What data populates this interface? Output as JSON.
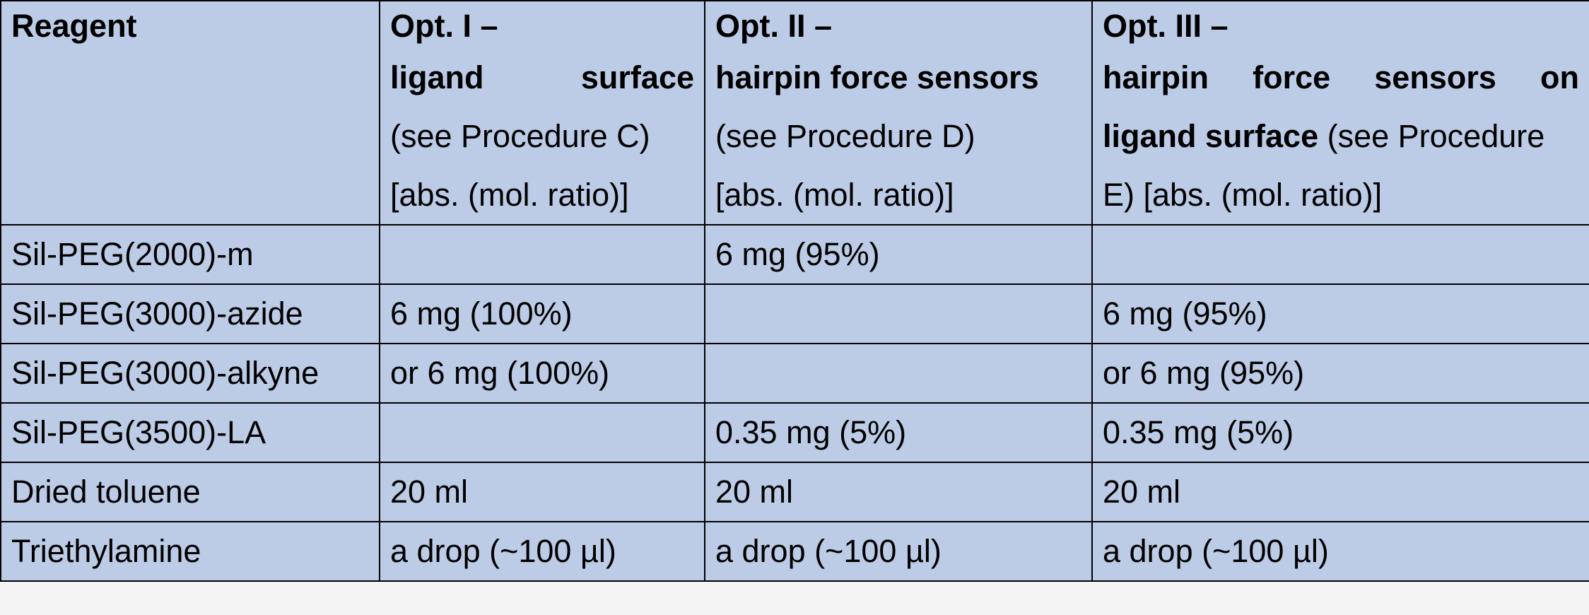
{
  "header": {
    "reagent": "Reagent",
    "opt1": {
      "title": "Opt. I –",
      "word1": "ligand",
      "word2": "surface",
      "ref": "(see Procedure C)",
      "unit": "[abs. (mol. ratio)]"
    },
    "opt2": {
      "title": "Opt. II –",
      "line": "hairpin force sensors",
      "ref": "(see Procedure D)",
      "unit": "[abs. (mol. ratio)]"
    },
    "opt3": {
      "title": "Opt. III –",
      "w1": "hairpin",
      "w2": "force",
      "w3": "sensors",
      "w4": "on",
      "bold_part": "ligand surface",
      "ref_part": " (see Procedure",
      "unit": "E) [abs. (mol. ratio)]"
    }
  },
  "rows": [
    {
      "reagent": "Sil-PEG(2000)-m",
      "opt1": "",
      "opt2": "6 mg (95%)",
      "opt3": ""
    },
    {
      "reagent": "Sil-PEG(3000)-azide",
      "opt1": "6 mg (100%)",
      "opt2": "",
      "opt3": "6 mg (95%)"
    },
    {
      "reagent": "Sil-PEG(3000)-alkyne",
      "opt1": "or 6 mg (100%)",
      "opt2": "",
      "opt3": "or 6 mg (95%)"
    },
    {
      "reagent": "Sil-PEG(3500)-LA",
      "opt1": "",
      "opt2": "0.35 mg (5%)",
      "opt3": "0.35 mg (5%)"
    },
    {
      "reagent": "Dried toluene",
      "opt1": "20 ml",
      "opt2": "20 ml",
      "opt3": "20 ml"
    },
    {
      "reagent": "Triethylamine",
      "opt1": "a drop (~100 µl)",
      "opt2": "a drop (~100 µl)",
      "opt3": "a drop (~100 µl)"
    }
  ]
}
